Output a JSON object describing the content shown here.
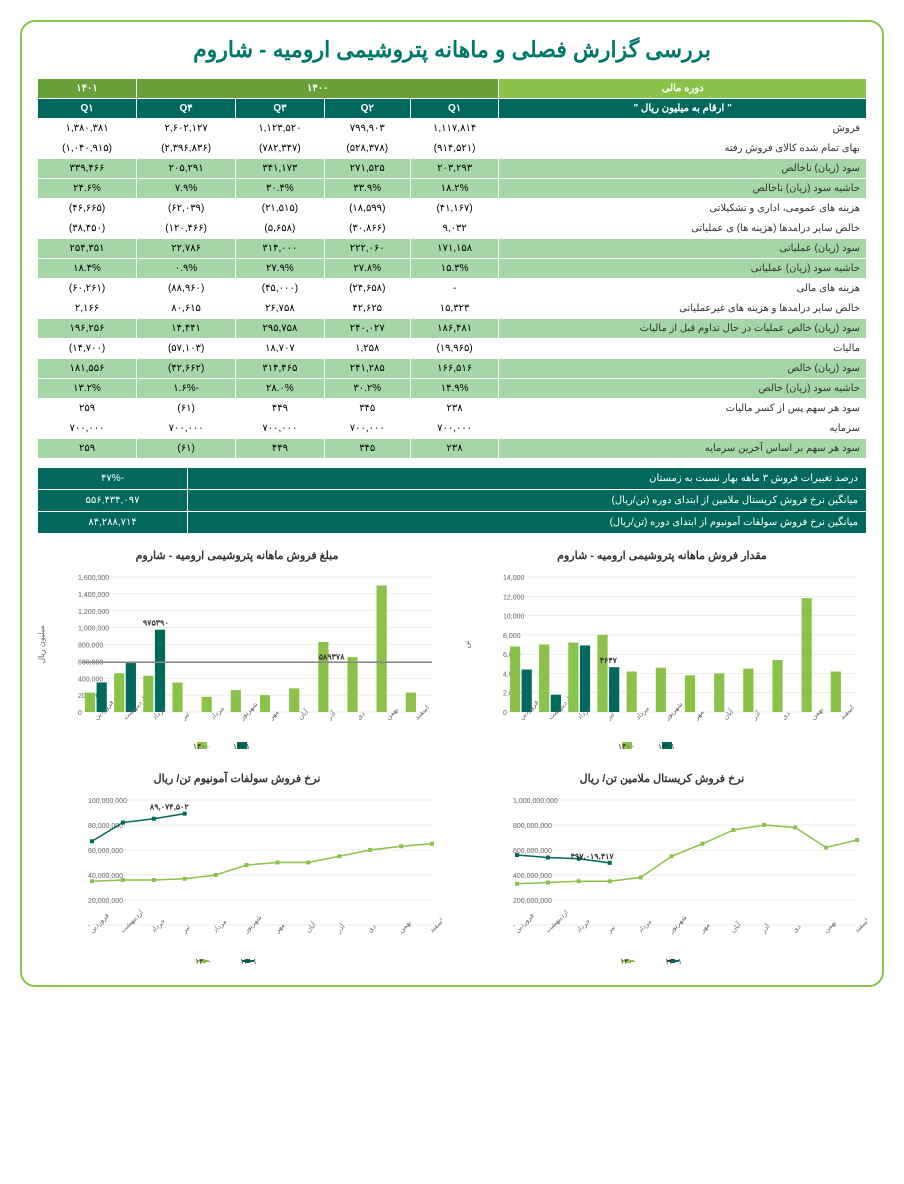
{
  "title": "بررسی گزارش فصلی و ماهانه پتروشیمی ارومیه - شاروم",
  "table": {
    "period_header": "دوره مالی",
    "unit_header": "\" ارقام به میلیون ریال \"",
    "years": {
      "y1400": "۱۴۰۰",
      "y1401": "۱۴۰۱"
    },
    "quarters": [
      "Q۱",
      "Q۲",
      "Q۳",
      "Q۴",
      "Q۱"
    ],
    "rows": [
      {
        "label": "فروش",
        "vals": [
          "۱,۱۱۷,۸۱۴",
          "۷۹۹,۹۰۳",
          "۱,۱۲۳,۵۲۰",
          "۲,۶۰۲,۱۲۷",
          "۱,۳۸۰,۳۸۱"
        ],
        "style": "white"
      },
      {
        "label": "بهای تمام شده کالای فروش رفته",
        "vals": [
          "(۹۱۴,۵۲۱)",
          "(۵۲۸,۳۷۸)",
          "(۷۸۲,۳۴۷)",
          "(۲,۳۹۶,۸۳۶)",
          "(۱,۰۴۰,۹۱۵)"
        ],
        "style": "white"
      },
      {
        "label": "سود (زیان) ناخالص",
        "vals": [
          "۲۰۳,۲۹۳",
          "۲۷۱,۵۲۵",
          "۳۴۱,۱۷۳",
          "۲۰۵,۲۹۱",
          "۳۳۹,۴۶۶"
        ],
        "style": "green"
      },
      {
        "label": "حاشیه سود (زیان) ناخالص",
        "vals": [
          "۱۸.۲%",
          "۳۳.۹%",
          "۳۰.۴%",
          "۷.۹%",
          "۲۴.۶%"
        ],
        "style": "green"
      },
      {
        "label": "هزینه های عمومی، اداری و تشکیلاتی",
        "vals": [
          "(۴۱,۱۶۷)",
          "(۱۸,۵۹۹)",
          "(۲۱,۵۱۵)",
          "(۶۲,۰۳۹)",
          "(۴۶,۶۶۵)"
        ],
        "style": "white"
      },
      {
        "label": "خالص سایر درامدها (هزینه ها) ی عملیاتی",
        "vals": [
          "۹,۰۳۲",
          "(۳۰,۸۶۶)",
          "(۵,۶۵۸)",
          "(۱۲۰,۴۶۶)",
          "(۳۸,۴۵۰)"
        ],
        "style": "white"
      },
      {
        "label": "سود (زیان) عملیاتی",
        "vals": [
          "۱۷۱,۱۵۸",
          "۲۲۲,۰۶۰",
          "۳۱۴,۰۰۰",
          "۲۲,۷۸۶",
          "۲۵۴,۳۵۱"
        ],
        "style": "green"
      },
      {
        "label": "حاشیه سود (زیان) عملیاتی",
        "vals": [
          "۱۵.۳%",
          "۲۷.۸%",
          "۲۷.۹%",
          "۰.۹%",
          "۱۸.۴%"
        ],
        "style": "green"
      },
      {
        "label": "هزینه های مالی",
        "vals": [
          "-",
          "(۲۴,۶۵۸)",
          "(۴۵,۰۰۰)",
          "(۸۸,۹۶۰)",
          "(۶۰,۲۶۱)"
        ],
        "style": "white"
      },
      {
        "label": "خالص سایر درامدها و هزینه های غیرعملیاتی",
        "vals": [
          "۱۵,۳۲۳",
          "۴۲,۶۲۵",
          "۲۶,۷۵۸",
          "۸۰,۶۱۵",
          "۲,۱۶۶"
        ],
        "style": "white"
      },
      {
        "label": "سود (زیان) خالص عملیات در حال تداوم قبل از مالیات",
        "vals": [
          "۱۸۶,۴۸۱",
          "۲۴۰,۰۲۷",
          "۲۹۵,۷۵۸",
          "۱۴,۴۴۱",
          "۱۹۶,۲۵۶"
        ],
        "style": "green"
      },
      {
        "label": "مالیات",
        "vals": [
          "(۱۹,۹۶۵)",
          "۱,۲۵۸",
          "۱۸,۷۰۷",
          "(۵۷,۱۰۳)",
          "(۱۴,۷۰۰)"
        ],
        "style": "white"
      },
      {
        "label": "سود (زیان) خالص",
        "vals": [
          "۱۶۶,۵۱۶",
          "۲۴۱,۲۸۵",
          "۳۱۴,۴۶۵",
          "(۴۲,۶۶۲)",
          "۱۸۱,۵۵۶"
        ],
        "style": "green"
      },
      {
        "label": "حاشیه سود (زیان) خالص",
        "vals": [
          "۱۴.۹%",
          "۳۰.۲%",
          "۲۸.۰%",
          "-۱.۶%",
          "۱۳.۲%"
        ],
        "style": "green"
      },
      {
        "label": "سود هر سهم پس از کسر مالیات",
        "vals": [
          "۲۳۸",
          "۳۴۵",
          "۴۴۹",
          "(۶۱)",
          "۲۵۹"
        ],
        "style": "white"
      },
      {
        "label": "سرمایه",
        "vals": [
          "۷۰۰,۰۰۰",
          "۷۰۰,۰۰۰",
          "۷۰۰,۰۰۰",
          "۷۰۰,۰۰۰",
          "۷۰۰,۰۰۰"
        ],
        "style": "white"
      },
      {
        "label": "سود هر سهم بر اساس آخرین سرمایه",
        "vals": [
          "۲۳۸",
          "۳۴۵",
          "۴۴۹",
          "(۶۱)",
          "۲۵۹"
        ],
        "style": "green"
      }
    ]
  },
  "summary": [
    {
      "label": "درصد تغییرات فروش ۳ ماهه بهار نسبت به زمستان",
      "val": "-۴۷%"
    },
    {
      "label": "میانگین نرخ فروش کریستال ملامین از ابتدای دوره (تن/ریال)",
      "val": "۵۵۶,۴۳۴,۰۹۷"
    },
    {
      "label": "میانگین نرخ فروش سولفات آمونیوم  از ابتدای دوره (تن/ریال)",
      "val": "۸۴,۲۸۸,۷۱۴"
    }
  ],
  "months": [
    "فروردین",
    "اردیبهشت",
    "خرداد",
    "تیر",
    "مرداد",
    "شهریور",
    "مهر",
    "آبان",
    "آذر",
    "دی",
    "بهمن",
    "اسفند"
  ],
  "legend": {
    "y1400": "۱۴۰۰",
    "y1401": "۱۴۰۱"
  },
  "chart1": {
    "title": "مقدار فروش ماهانه پتروشیمی ارومیه - شاروم",
    "ylabel": "تن",
    "ymax": 14000,
    "ystep": 2000,
    "y1400": [
      6800,
      7000,
      7200,
      8000,
      4200,
      4600,
      3800,
      4000,
      4500,
      5400,
      11800,
      4200
    ],
    "y1401": [
      4400,
      1800,
      6900,
      4647,
      null,
      null,
      null,
      null,
      null,
      null,
      null,
      null
    ],
    "callout": "۴۶۴۷",
    "colors": {
      "y1400": "#8bc34a",
      "y1401": "#00695c"
    }
  },
  "chart2": {
    "title": "مبلغ فروش ماهانه پتروشیمی ارومیه - شاروم",
    "ylabel": "میلیون ریال",
    "ymax": 1600000,
    "ystep": 200000,
    "y1400": [
      230000,
      460000,
      430000,
      350000,
      180000,
      260000,
      200000,
      280000,
      830000,
      650000,
      1500000,
      230000
    ],
    "y1401": [
      350000,
      580000,
      975390,
      null,
      null,
      null,
      null,
      null,
      null,
      null,
      null,
      null
    ],
    "avg": 589378,
    "callout1": "۹۷۵۳۹۰",
    "callout2": "۵۸۹۳۷۸",
    "colors": {
      "y1400": "#8bc34a",
      "y1401": "#00695c",
      "avg": "#888"
    }
  },
  "chart3": {
    "title": "نرخ فروش کریستال ملامین تن/ ریال",
    "ymax": 1000000000,
    "ystep": 200000000,
    "y1400": [
      330000000,
      340000000,
      350000000,
      350000000,
      380000000,
      550000000,
      650000000,
      760000000,
      800000000,
      780000000,
      620000000,
      680000000
    ],
    "y1401": [
      560000000,
      540000000,
      530000000,
      497019417,
      null,
      null,
      null,
      null,
      null,
      null,
      null,
      null
    ],
    "callout": "۴۹۷,۰۱۹,۴۱۷",
    "colors": {
      "y1400": "#8bc34a",
      "y1401": "#00695c"
    }
  },
  "chart4": {
    "title": "نرخ فروش سولفات آمونیوم  تن/ ریال",
    "ymax": 100000000,
    "ystep": 20000000,
    "y1400": [
      35000000,
      36000000,
      36000000,
      37000000,
      40000000,
      48000000,
      50000000,
      50000000,
      55000000,
      60000000,
      63000000,
      65000000
    ],
    "y1401": [
      67000000,
      82000000,
      85000000,
      89074502,
      null,
      null,
      null,
      null,
      null,
      null,
      null,
      null
    ],
    "callout": "۸۹,۰۷۴,۵۰۲",
    "colors": {
      "y1400": "#8bc34a",
      "y1401": "#00695c"
    }
  }
}
